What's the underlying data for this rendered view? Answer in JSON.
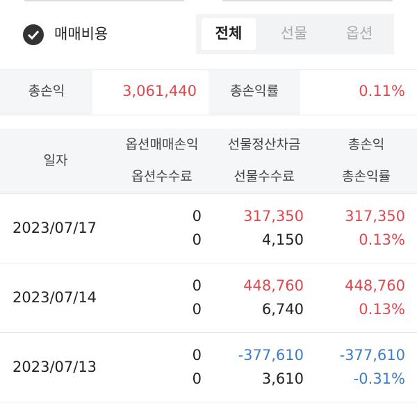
{
  "filter": {
    "checkbox_label": "매매비용",
    "tabs": [
      "전체",
      "선물",
      "옵션"
    ]
  },
  "summary": {
    "total_pnl_label": "총손익",
    "total_pnl": "3,061,440",
    "total_rate_label": "총손익률",
    "total_rate": "0.11%"
  },
  "table": {
    "header": [
      "일자",
      "옵션매매손익",
      "옵션수수료",
      "선물정산차금",
      "선물수수료",
      "총손익",
      "총손익률"
    ],
    "rows": [
      [
        "2023/07/17",
        "0",
        "0",
        "317,350",
        "4,150",
        "317,350",
        "0.13%"
      ],
      [
        "2023/07/14",
        "0",
        "0",
        "448,760",
        "6,740",
        "448,760",
        "0.13%"
      ],
      [
        "2023/07/13",
        "0",
        "0",
        "-377,610",
        "3,610",
        "-377,610",
        "-0.31%"
      ]
    ]
  }
}
